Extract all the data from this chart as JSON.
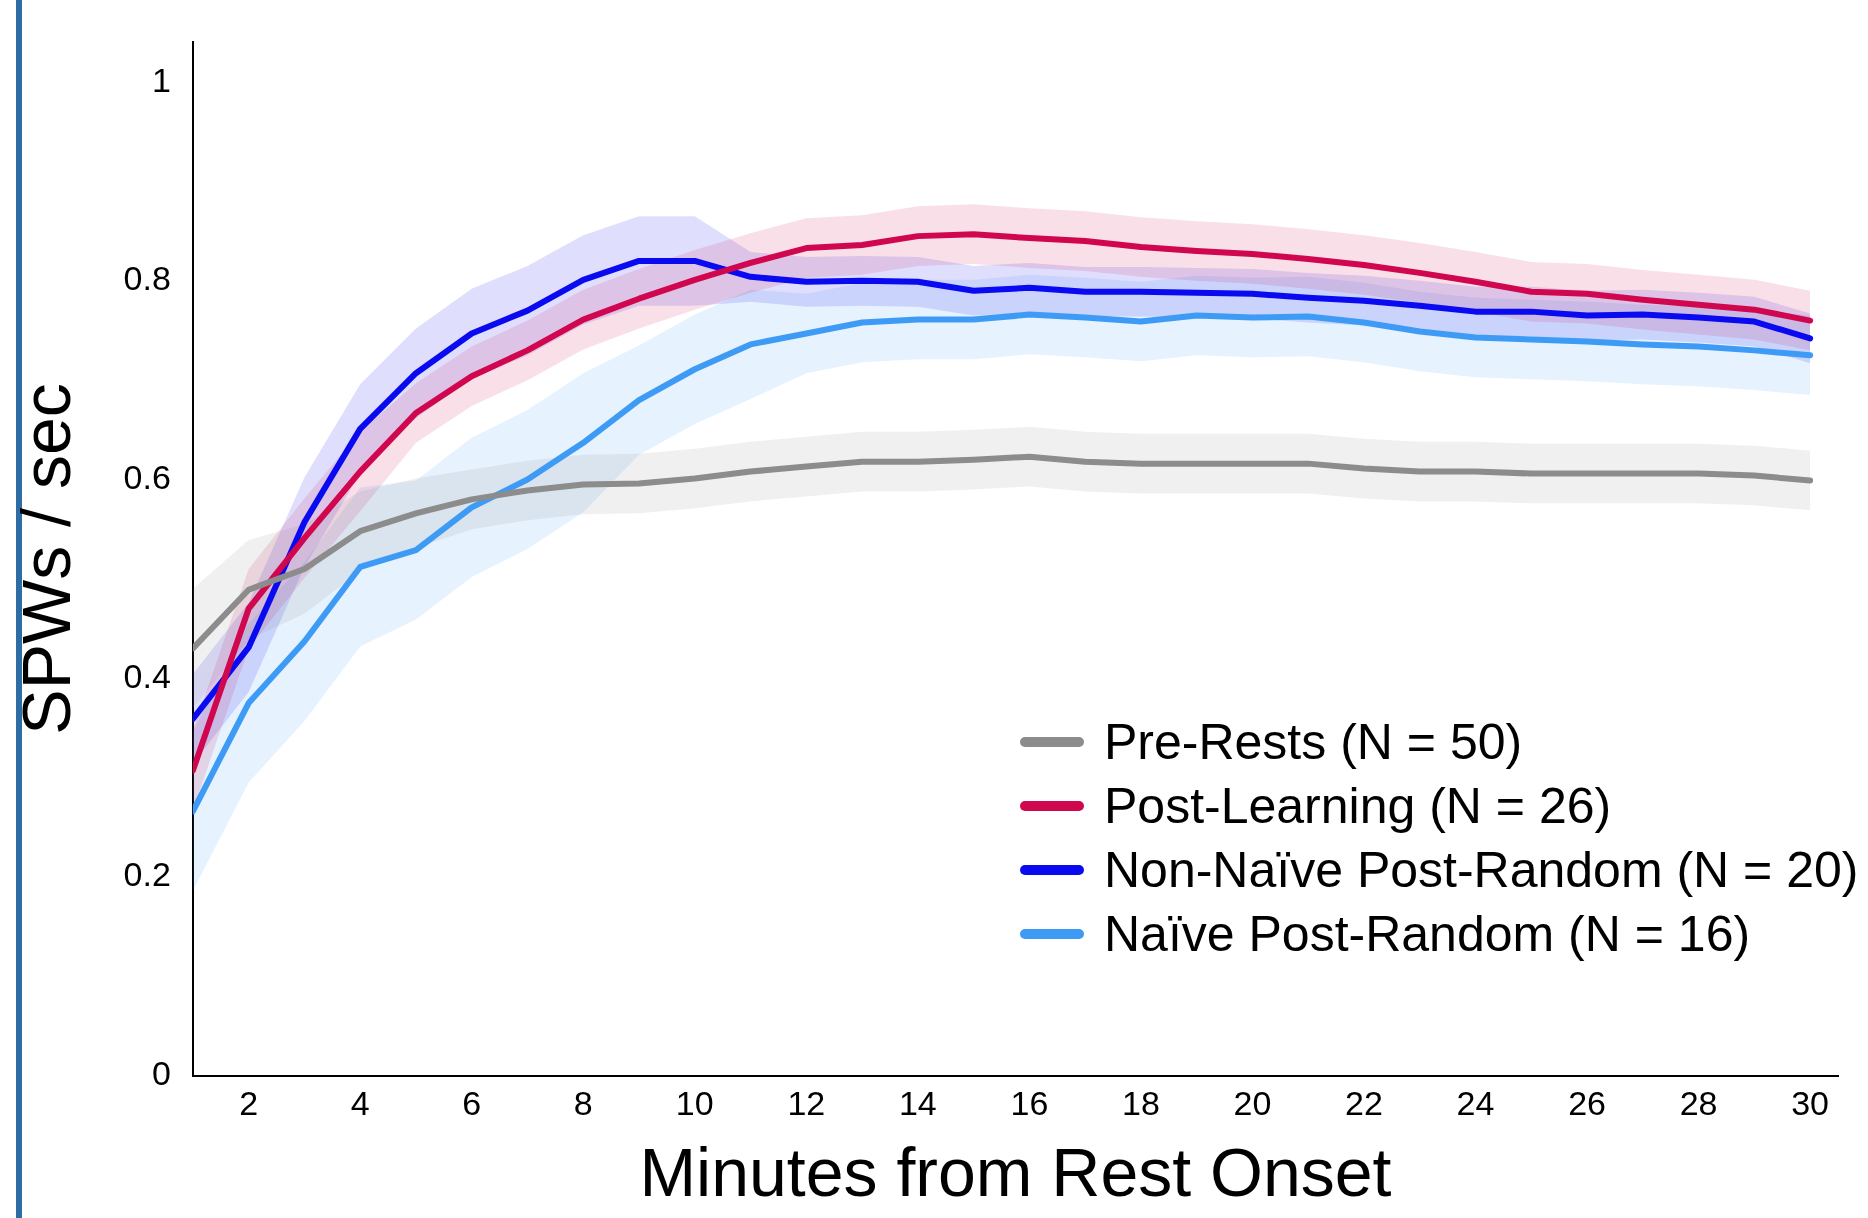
{
  "chart_data": {
    "type": "line",
    "xlabel": "Minutes from Rest Onset",
    "ylabel": "SPWs / sec",
    "x": [
      1,
      2,
      3,
      4,
      5,
      6,
      7,
      8,
      9,
      10,
      11,
      12,
      13,
      14,
      15,
      16,
      17,
      18,
      19,
      20,
      21,
      22,
      23,
      24,
      25,
      26,
      27,
      28,
      29,
      30
    ],
    "xlim": [
      1,
      30.5
    ],
    "xticks": [
      2,
      4,
      6,
      8,
      10,
      12,
      14,
      16,
      18,
      20,
      22,
      24,
      26,
      28,
      30
    ],
    "ylim": [
      0,
      1.04
    ],
    "yticks": [
      0,
      0.2,
      0.4,
      0.6,
      0.8,
      1
    ],
    "grid": false,
    "legend": "bottom right",
    "marker": "none",
    "line_style": "solid",
    "series": [
      {
        "name": "Pre-Rests (N = 50)",
        "color": "#8c8c8c",
        "values": [
          0.43,
          0.489,
          0.51,
          0.548,
          0.566,
          0.58,
          0.589,
          0.595,
          0.596,
          0.601,
          0.608,
          0.613,
          0.618,
          0.618,
          0.62,
          0.623,
          0.618,
          0.616,
          0.616,
          0.616,
          0.616,
          0.611,
          0.608,
          0.608,
          0.606,
          0.606,
          0.606,
          0.606,
          0.604,
          0.599
        ],
        "lower": [
          0.37,
          0.439,
          0.465,
          0.508,
          0.531,
          0.55,
          0.559,
          0.565,
          0.566,
          0.571,
          0.578,
          0.583,
          0.588,
          0.588,
          0.59,
          0.593,
          0.588,
          0.586,
          0.586,
          0.586,
          0.586,
          0.581,
          0.578,
          0.578,
          0.576,
          0.576,
          0.576,
          0.576,
          0.574,
          0.569
        ],
        "upper": [
          0.49,
          0.539,
          0.555,
          0.588,
          0.601,
          0.61,
          0.619,
          0.625,
          0.626,
          0.631,
          0.638,
          0.643,
          0.648,
          0.648,
          0.65,
          0.653,
          0.648,
          0.646,
          0.646,
          0.646,
          0.646,
          0.641,
          0.638,
          0.638,
          0.636,
          0.636,
          0.636,
          0.636,
          0.634,
          0.629
        ]
      },
      {
        "name": "Post-Learning (N = 26)",
        "color": "#d0064e",
        "values": [
          0.307,
          0.47,
          0.541,
          0.608,
          0.667,
          0.704,
          0.73,
          0.761,
          0.782,
          0.801,
          0.818,
          0.833,
          0.836,
          0.845,
          0.847,
          0.843,
          0.84,
          0.834,
          0.83,
          0.827,
          0.822,
          0.816,
          0.808,
          0.799,
          0.789,
          0.787,
          0.781,
          0.776,
          0.771,
          0.76
        ],
        "lower": [
          0.267,
          0.43,
          0.501,
          0.568,
          0.637,
          0.674,
          0.7,
          0.731,
          0.752,
          0.771,
          0.788,
          0.803,
          0.806,
          0.815,
          0.817,
          0.813,
          0.81,
          0.804,
          0.8,
          0.797,
          0.792,
          0.786,
          0.778,
          0.769,
          0.759,
          0.757,
          0.751,
          0.746,
          0.741,
          0.73
        ],
        "upper": [
          0.347,
          0.51,
          0.581,
          0.648,
          0.697,
          0.734,
          0.76,
          0.791,
          0.812,
          0.831,
          0.848,
          0.863,
          0.866,
          0.875,
          0.877,
          0.873,
          0.87,
          0.864,
          0.86,
          0.857,
          0.852,
          0.846,
          0.838,
          0.829,
          0.819,
          0.817,
          0.811,
          0.806,
          0.801,
          0.79
        ]
      },
      {
        "name": "Non-Naïve Post-Random (N = 20)",
        "color": "#0a0af0",
        "values": [
          0.359,
          0.431,
          0.557,
          0.651,
          0.707,
          0.747,
          0.77,
          0.801,
          0.82,
          0.82,
          0.804,
          0.799,
          0.8,
          0.799,
          0.79,
          0.793,
          0.789,
          0.789,
          0.788,
          0.787,
          0.783,
          0.78,
          0.775,
          0.769,
          0.769,
          0.765,
          0.766,
          0.763,
          0.759,
          0.742
        ],
        "lower": [
          0.314,
          0.386,
          0.512,
          0.606,
          0.662,
          0.702,
          0.725,
          0.756,
          0.775,
          0.775,
          0.779,
          0.774,
          0.775,
          0.774,
          0.765,
          0.768,
          0.764,
          0.764,
          0.763,
          0.762,
          0.758,
          0.755,
          0.75,
          0.744,
          0.744,
          0.74,
          0.741,
          0.738,
          0.734,
          0.717
        ],
        "upper": [
          0.404,
          0.476,
          0.602,
          0.696,
          0.752,
          0.792,
          0.815,
          0.846,
          0.865,
          0.865,
          0.829,
          0.824,
          0.825,
          0.824,
          0.815,
          0.818,
          0.814,
          0.814,
          0.813,
          0.812,
          0.808,
          0.805,
          0.8,
          0.794,
          0.794,
          0.79,
          0.791,
          0.788,
          0.784,
          0.767
        ]
      },
      {
        "name": "Naïve Post-Random (N = 16)",
        "color": "#3d9bf5",
        "values": [
          0.266,
          0.375,
          0.437,
          0.512,
          0.529,
          0.572,
          0.6,
          0.637,
          0.68,
          0.711,
          0.736,
          0.747,
          0.758,
          0.761,
          0.761,
          0.766,
          0.763,
          0.759,
          0.765,
          0.763,
          0.764,
          0.758,
          0.749,
          0.743,
          0.741,
          0.739,
          0.736,
          0.734,
          0.73,
          0.725
        ],
        "lower": [
          0.186,
          0.295,
          0.357,
          0.432,
          0.459,
          0.502,
          0.53,
          0.567,
          0.625,
          0.656,
          0.681,
          0.707,
          0.718,
          0.721,
          0.721,
          0.726,
          0.723,
          0.719,
          0.725,
          0.723,
          0.724,
          0.718,
          0.709,
          0.703,
          0.701,
          0.699,
          0.696,
          0.694,
          0.69,
          0.685
        ],
        "upper": [
          0.346,
          0.455,
          0.517,
          0.592,
          0.599,
          0.642,
          0.67,
          0.707,
          0.735,
          0.766,
          0.791,
          0.787,
          0.798,
          0.801,
          0.801,
          0.806,
          0.803,
          0.799,
          0.805,
          0.803,
          0.804,
          0.798,
          0.789,
          0.783,
          0.781,
          0.779,
          0.776,
          0.774,
          0.77,
          0.765
        ]
      }
    ]
  }
}
